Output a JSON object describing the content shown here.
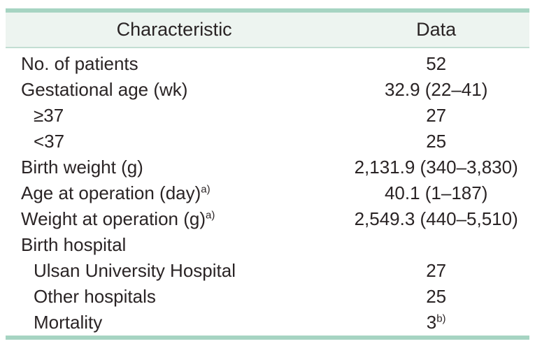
{
  "table": {
    "header": {
      "characteristic_label": "Characteristic",
      "data_label": "Data"
    },
    "rows": [
      {
        "label": "No. of patients",
        "label_sup": "",
        "indent": 0,
        "value": "52",
        "value_sup": ""
      },
      {
        "label": "Gestational age (wk)",
        "label_sup": "",
        "indent": 0,
        "value": "32.9 (22–41)",
        "value_sup": ""
      },
      {
        "label": "≥37",
        "label_sup": "",
        "indent": 1,
        "value": "27",
        "value_sup": ""
      },
      {
        "label": "<37",
        "label_sup": "",
        "indent": 1,
        "value": "25",
        "value_sup": ""
      },
      {
        "label": "Birth weight (g)",
        "label_sup": "",
        "indent": 0,
        "value": "2,131.9 (340–3,830)",
        "value_sup": ""
      },
      {
        "label": "Age at operation (day)",
        "label_sup": "a)",
        "indent": 0,
        "value": "40.1 (1–187)",
        "value_sup": ""
      },
      {
        "label": "Weight at operation (g)",
        "label_sup": "a)",
        "indent": 0,
        "value": "2,549.3 (440–5,510)",
        "value_sup": ""
      },
      {
        "label": "Birth hospital",
        "label_sup": "",
        "indent": 0,
        "value": "",
        "value_sup": ""
      },
      {
        "label": "Ulsan University Hospital",
        "label_sup": "",
        "indent": 1,
        "value": "27",
        "value_sup": ""
      },
      {
        "label": "Other hospitals",
        "label_sup": "",
        "indent": 1,
        "value": "25",
        "value_sup": ""
      },
      {
        "label": "Mortality",
        "label_sup": "",
        "indent": 1,
        "value": "3",
        "value_sup": "b)"
      }
    ]
  },
  "colors": {
    "accent_rule": "#a6d4c2",
    "header_background": "#edf4f0",
    "header_underline": "#c2ded2",
    "text": "#2a2425"
  }
}
